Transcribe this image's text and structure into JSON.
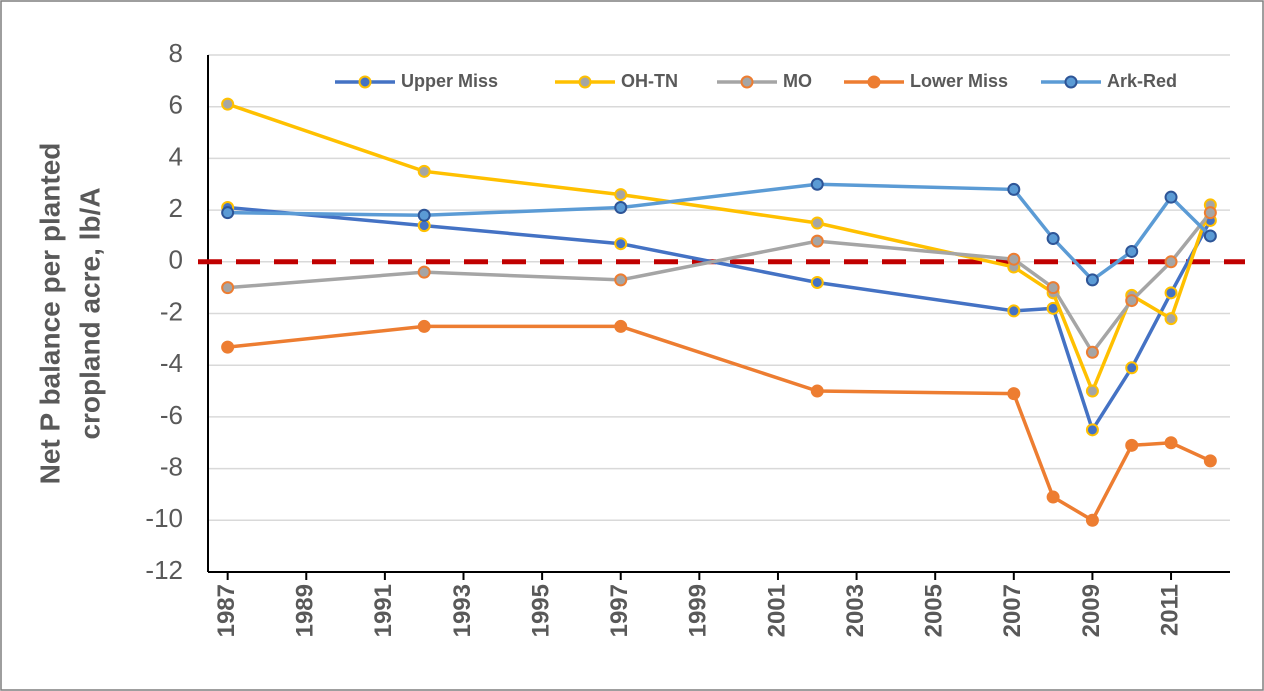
{
  "chart_data": {
    "type": "line",
    "ylabel": [
      "Net P balance per planted",
      "cropland acre, lb/A"
    ],
    "x": [
      1987,
      1992,
      1997,
      2002,
      2007,
      2008,
      2009,
      2010,
      2011,
      2012
    ],
    "xlim": [
      1986.5,
      2012.5
    ],
    "xticks": [
      1987,
      1989,
      1991,
      1993,
      1995,
      1997,
      1999,
      2001,
      2003,
      2005,
      2007,
      2009,
      2011
    ],
    "ylim": [
      -12,
      8
    ],
    "yticks": [
      -12,
      -10,
      -8,
      -6,
      -4,
      -2,
      0,
      2,
      4,
      6,
      8
    ],
    "grid": true,
    "reference_line": {
      "value": 0,
      "color": "#c00000"
    },
    "legend": "top",
    "series": [
      {
        "name": "Upper Miss",
        "color": "#4472c4",
        "marker_color": "#4472c4",
        "marker_edge": "#ffc000",
        "values": [
          2.1,
          1.4,
          0.7,
          -0.8,
          -1.9,
          -1.8,
          -6.5,
          -4.1,
          -1.2,
          1.6
        ]
      },
      {
        "name": "OH-TN",
        "color": "#ffc000",
        "marker_color": "#a5a5a5",
        "marker_edge": "#ffc000",
        "values": [
          6.1,
          3.5,
          2.6,
          1.5,
          -0.2,
          -1.2,
          -5.0,
          -1.3,
          -2.2,
          2.2
        ]
      },
      {
        "name": "MO",
        "color": "#a5a5a5",
        "marker_color": "#a5a5a5",
        "marker_edge": "#ed7d31",
        "values": [
          -1.0,
          -0.4,
          -0.7,
          0.8,
          0.1,
          -1.0,
          -3.5,
          -1.5,
          0.0,
          1.9
        ]
      },
      {
        "name": "Lower Miss",
        "color": "#ed7d31",
        "marker_color": "#ed7d31",
        "marker_edge": "#ed7d31",
        "values": [
          -3.3,
          -2.5,
          -2.5,
          -5.0,
          -5.1,
          -9.1,
          -10.0,
          -7.1,
          -7.0,
          -7.7
        ]
      },
      {
        "name": "Ark-Red",
        "color": "#5b9bd5",
        "marker_color": "#5b9bd5",
        "marker_edge": "#2e5597",
        "values": [
          1.9,
          1.8,
          2.1,
          3.0,
          2.8,
          0.9,
          -0.7,
          0.4,
          2.5,
          1.0
        ]
      }
    ]
  }
}
